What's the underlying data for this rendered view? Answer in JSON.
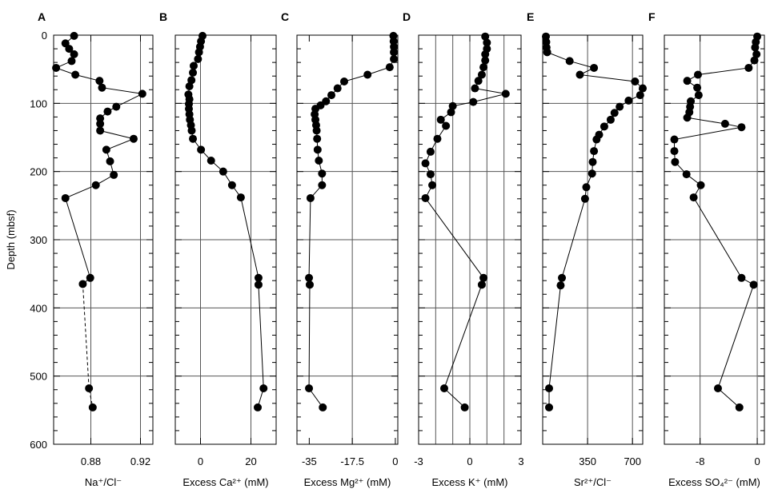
{
  "chart_data": [
    {
      "panel": "A",
      "type": "scatter",
      "xlabel": "Na⁺/Cl⁻",
      "xlim": [
        0.85,
        0.93
      ],
      "xticks": [
        0.88,
        0.92
      ],
      "xtick_labels": [
        "0.88",
        "0.92"
      ],
      "xgrid": [
        0.88,
        0.92
      ],
      "ylim": [
        600,
        0
      ],
      "yticks": [
        0,
        100,
        200,
        300,
        400,
        500,
        600
      ],
      "ytick_labels": [
        "0",
        "100",
        "200",
        "300",
        "400",
        "500",
        "600"
      ],
      "ylabel": "Depth (mbsf)",
      "points": [
        [
          0.8665,
          1
        ],
        [
          0.8595,
          12
        ],
        [
          0.8625,
          20
        ],
        [
          0.8665,
          28
        ],
        [
          0.8645,
          38
        ],
        [
          0.852,
          48
        ],
        [
          0.8675,
          58
        ],
        [
          0.887,
          67
        ],
        [
          0.889,
          77
        ],
        [
          0.9215,
          86
        ],
        [
          0.9005,
          105
        ],
        [
          0.8935,
          112
        ],
        [
          0.8875,
          122
        ],
        [
          0.8875,
          130
        ],
        [
          0.8875,
          140
        ],
        [
          0.9145,
          152
        ],
        [
          0.8925,
          168
        ],
        [
          0.8955,
          185
        ],
        [
          0.8985,
          205
        ],
        [
          0.884,
          220
        ],
        [
          0.8595,
          239
        ],
        [
          0.8795,
          356
        ],
        [
          0.8735,
          365
        ],
        [
          0.8785,
          518
        ],
        [
          0.8815,
          546
        ]
      ],
      "dashed_after_index": 22
    },
    {
      "panel": "B",
      "type": "scatter",
      "xlabel": "Excess Ca²⁺ (mM)",
      "xlim": [
        -10,
        30
      ],
      "xticks": [
        0,
        20
      ],
      "xtick_labels": [
        "0",
        "20"
      ],
      "xgrid": [
        0,
        20
      ],
      "ylim": [
        600,
        0
      ],
      "yticks": [
        0,
        100,
        200,
        300,
        400,
        500,
        600
      ],
      "points": [
        [
          0.8,
          1
        ],
        [
          0.2,
          9
        ],
        [
          -0.2,
          17
        ],
        [
          -0.6,
          25
        ],
        [
          -1,
          35
        ],
        [
          -2.7,
          45
        ],
        [
          -3,
          55
        ],
        [
          -3.6,
          66
        ],
        [
          -4.4,
          75
        ],
        [
          -4.8,
          87
        ],
        [
          -4.4,
          94
        ],
        [
          -4.6,
          101
        ],
        [
          -4.6,
          108
        ],
        [
          -4.4,
          116
        ],
        [
          -4.2,
          124
        ],
        [
          -3.8,
          132
        ],
        [
          -3.5,
          140
        ],
        [
          -3,
          152
        ],
        [
          0.2,
          168
        ],
        [
          4.2,
          184
        ],
        [
          9,
          200
        ],
        [
          12.5,
          220
        ],
        [
          16,
          238
        ],
        [
          23,
          356
        ],
        [
          23,
          366
        ],
        [
          25,
          518
        ],
        [
          22.7,
          546
        ]
      ]
    },
    {
      "panel": "C",
      "type": "scatter",
      "xlabel": "Excess Mg²⁺ (mM)",
      "xlim": [
        -40,
        1
      ],
      "xticks": [
        -35,
        -17.5,
        0
      ],
      "xtick_labels": [
        "-35",
        "-17.5",
        "0"
      ],
      "xgrid": [
        -17.5
      ],
      "ylim": [
        600,
        0
      ],
      "yticks": [
        0,
        100,
        200,
        300,
        400,
        500,
        600
      ],
      "points": [
        [
          -0.8,
          1
        ],
        [
          -0.7,
          9
        ],
        [
          -0.6,
          17
        ],
        [
          -0.6,
          25
        ],
        [
          -0.6,
          35
        ],
        [
          -2.3,
          47
        ],
        [
          -11.3,
          58
        ],
        [
          -20.8,
          68
        ],
        [
          -23.5,
          78
        ],
        [
          -26,
          88
        ],
        [
          -28.2,
          97
        ],
        [
          -30.4,
          103
        ],
        [
          -32.5,
          108
        ],
        [
          -32.8,
          116
        ],
        [
          -32.5,
          124
        ],
        [
          -32.2,
          132
        ],
        [
          -32,
          140
        ],
        [
          -31.8,
          152
        ],
        [
          -31.6,
          168
        ],
        [
          -31.1,
          184
        ],
        [
          -29.8,
          203
        ],
        [
          -29.8,
          220
        ],
        [
          -34.5,
          239
        ],
        [
          -35.1,
          356
        ],
        [
          -34.8,
          366
        ],
        [
          -35.1,
          518
        ],
        [
          -29.5,
          546
        ]
      ]
    },
    {
      "panel": "D",
      "type": "scatter",
      "xlabel": "Excess K⁺ (mM)",
      "xlim": [
        -3,
        3
      ],
      "xticks": [
        -3,
        0,
        3
      ],
      "xtick_labels": [
        "-3",
        "0",
        "3"
      ],
      "xgrid": [
        -2,
        -1,
        0,
        1,
        2
      ],
      "ylim": [
        600,
        0
      ],
      "yticks": [
        0,
        100,
        200,
        300,
        400,
        500,
        600
      ],
      "points": [
        [
          0.9,
          2
        ],
        [
          1,
          11
        ],
        [
          1,
          20
        ],
        [
          0.9,
          28
        ],
        [
          0.9,
          37
        ],
        [
          0.8,
          47
        ],
        [
          0.7,
          58
        ],
        [
          0.5,
          67
        ],
        [
          0.3,
          78
        ],
        [
          2.1,
          86
        ],
        [
          0.2,
          98
        ],
        [
          -1,
          104
        ],
        [
          -1.1,
          113
        ],
        [
          -1.7,
          124
        ],
        [
          -1.4,
          133
        ],
        [
          -1.9,
          152
        ],
        [
          -2.3,
          171
        ],
        [
          -2.6,
          188
        ],
        [
          -2.3,
          204
        ],
        [
          -2.2,
          220
        ],
        [
          -2.6,
          239
        ],
        [
          0.8,
          356
        ],
        [
          0.7,
          366
        ],
        [
          -1.5,
          518
        ],
        [
          -0.3,
          546
        ]
      ]
    },
    {
      "panel": "E",
      "type": "scatter",
      "xlabel": "Sr²⁺/Cl⁻",
      "xlim": [
        0,
        780
      ],
      "xticks": [
        350,
        700
      ],
      "xtick_labels": [
        "350",
        "700"
      ],
      "xgrid": [
        350,
        700
      ],
      "ylim": [
        600,
        0
      ],
      "yticks": [
        0,
        100,
        200,
        300,
        400,
        500,
        600
      ],
      "points": [
        [
          25,
          2
        ],
        [
          28,
          10
        ],
        [
          30,
          18
        ],
        [
          35,
          25
        ],
        [
          210,
          38
        ],
        [
          400,
          48
        ],
        [
          290,
          58
        ],
        [
          720,
          68
        ],
        [
          780,
          78
        ],
        [
          760,
          88
        ],
        [
          670,
          96
        ],
        [
          600,
          105
        ],
        [
          560,
          114
        ],
        [
          530,
          124
        ],
        [
          480,
          134
        ],
        [
          440,
          146
        ],
        [
          420,
          153
        ],
        [
          400,
          170
        ],
        [
          390,
          186
        ],
        [
          385,
          203
        ],
        [
          340,
          223
        ],
        [
          330,
          240
        ],
        [
          150,
          356
        ],
        [
          140,
          367
        ],
        [
          50,
          518
        ],
        [
          50,
          546
        ]
      ]
    },
    {
      "panel": "F",
      "type": "scatter",
      "xlabel": "Excess SO₄²⁻ (mM)",
      "xlim": [
        -13,
        1
      ],
      "xticks": [
        -8,
        0
      ],
      "xtick_labels": [
        "-8",
        "0"
      ],
      "xgrid": [
        -8,
        0
      ],
      "ylim": [
        600,
        0
      ],
      "yticks": [
        0,
        100,
        200,
        300,
        400,
        500,
        600
      ],
      "points": [
        [
          0,
          2
        ],
        [
          -0.2,
          10
        ],
        [
          -0.3,
          18
        ],
        [
          -0.1,
          28
        ],
        [
          -0.4,
          37
        ],
        [
          -1.2,
          48
        ],
        [
          -8.3,
          58
        ],
        [
          -9.8,
          67
        ],
        [
          -8.4,
          77
        ],
        [
          -8.2,
          88
        ],
        [
          -9.3,
          97
        ],
        [
          -9.4,
          105
        ],
        [
          -9.5,
          113
        ],
        [
          -9.8,
          121
        ],
        [
          -4.5,
          130
        ],
        [
          -2.2,
          135
        ],
        [
          -11.6,
          153
        ],
        [
          -11.6,
          170
        ],
        [
          -11.5,
          186
        ],
        [
          -9.9,
          204
        ],
        [
          -7.9,
          220
        ],
        [
          -8.9,
          238
        ],
        [
          -2.2,
          356
        ],
        [
          -0.5,
          366
        ],
        [
          -5.5,
          518
        ],
        [
          -2.5,
          546
        ]
      ]
    }
  ]
}
